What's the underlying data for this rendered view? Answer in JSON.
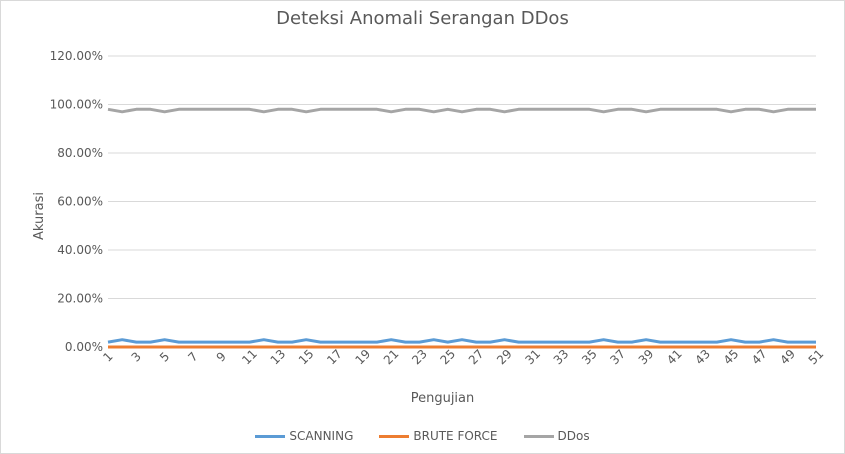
{
  "chart_data": {
    "type": "line",
    "title": "Deteksi Anomali Serangan DDos",
    "xlabel": "Pengujian",
    "ylabel": "Akurasi",
    "ylim": [
      0,
      1.2
    ],
    "yticks": [
      "0.00%",
      "20.00%",
      "40.00%",
      "60.00%",
      "80.00%",
      "100.00%",
      "120.00%"
    ],
    "x": [
      1,
      2,
      3,
      4,
      5,
      6,
      7,
      8,
      9,
      10,
      11,
      12,
      13,
      14,
      15,
      16,
      17,
      18,
      19,
      20,
      21,
      22,
      23,
      24,
      25,
      26,
      27,
      28,
      29,
      30,
      31,
      32,
      33,
      34,
      35,
      36,
      37,
      38,
      39,
      40,
      41,
      42,
      43,
      44,
      45,
      46,
      47,
      48,
      49,
      50,
      51
    ],
    "xtick_labels": [
      "1",
      "3",
      "5",
      "7",
      "9",
      "11",
      "13",
      "15",
      "17",
      "19",
      "21",
      "23",
      "25",
      "27",
      "29",
      "31",
      "33",
      "35",
      "37",
      "39",
      "41",
      "43",
      "45",
      "47",
      "49",
      "51"
    ],
    "grid": true,
    "legend_position": "bottom",
    "series": [
      {
        "name": "SCANNING",
        "color": "#5b9bd5",
        "values": [
          0.02,
          0.03,
          0.02,
          0.02,
          0.03,
          0.02,
          0.02,
          0.02,
          0.02,
          0.02,
          0.02,
          0.03,
          0.02,
          0.02,
          0.03,
          0.02,
          0.02,
          0.02,
          0.02,
          0.02,
          0.03,
          0.02,
          0.02,
          0.03,
          0.02,
          0.03,
          0.02,
          0.02,
          0.03,
          0.02,
          0.02,
          0.02,
          0.02,
          0.02,
          0.02,
          0.03,
          0.02,
          0.02,
          0.03,
          0.02,
          0.02,
          0.02,
          0.02,
          0.02,
          0.03,
          0.02,
          0.02,
          0.03,
          0.02,
          0.02,
          0.02
        ]
      },
      {
        "name": "BRUTE FORCE",
        "color": "#ed7d31",
        "values": [
          0,
          0,
          0,
          0,
          0,
          0,
          0,
          0,
          0,
          0,
          0,
          0,
          0,
          0,
          0,
          0,
          0,
          0,
          0,
          0,
          0,
          0,
          0,
          0,
          0,
          0,
          0,
          0,
          0,
          0,
          0,
          0,
          0,
          0,
          0,
          0,
          0,
          0,
          0,
          0,
          0,
          0,
          0,
          0,
          0,
          0,
          0,
          0,
          0,
          0,
          0
        ]
      },
      {
        "name": "DDos",
        "color": "#a5a5a5",
        "values": [
          0.98,
          0.97,
          0.98,
          0.98,
          0.97,
          0.98,
          0.98,
          0.98,
          0.98,
          0.98,
          0.98,
          0.97,
          0.98,
          0.98,
          0.97,
          0.98,
          0.98,
          0.98,
          0.98,
          0.98,
          0.97,
          0.98,
          0.98,
          0.97,
          0.98,
          0.97,
          0.98,
          0.98,
          0.97,
          0.98,
          0.98,
          0.98,
          0.98,
          0.98,
          0.98,
          0.97,
          0.98,
          0.98,
          0.97,
          0.98,
          0.98,
          0.98,
          0.98,
          0.98,
          0.97,
          0.98,
          0.98,
          0.97,
          0.98,
          0.98,
          0.98
        ]
      }
    ]
  }
}
